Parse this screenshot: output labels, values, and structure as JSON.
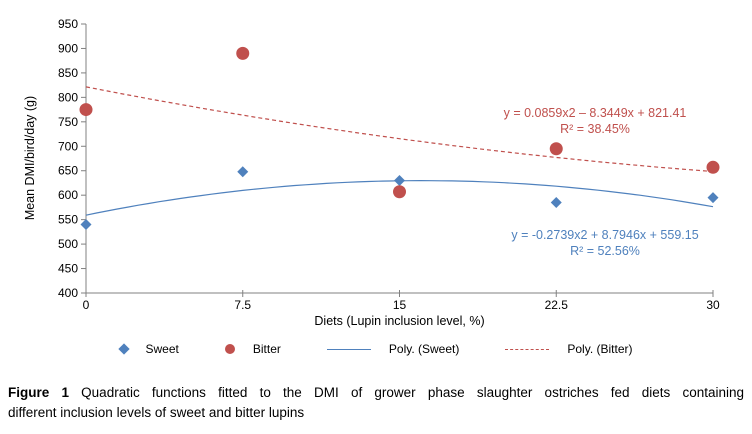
{
  "colors": {
    "sweet": "#4F81BD",
    "bitter": "#C0504D",
    "axis": "#808080"
  },
  "chart_data": {
    "type": "scatter",
    "x": [
      0,
      7.5,
      15,
      22.5,
      30
    ],
    "x_tick_labels": [
      "0",
      "7.5",
      "15",
      "22.5",
      "30"
    ],
    "y_ticks": [
      400,
      450,
      500,
      550,
      600,
      650,
      700,
      750,
      800,
      850,
      900,
      950
    ],
    "xlim": [
      0,
      30
    ],
    "ylim": [
      400,
      950
    ],
    "xlabel": "Diets (Lupin inclusion level, %)",
    "ylabel": "Mean DMI/bird/day (g)",
    "grid": false,
    "legend_position": "bottom",
    "series": [
      {
        "name": "Sweet",
        "marker": "diamond",
        "color_key": "sweet",
        "values": [
          540,
          648,
          630,
          585,
          595
        ]
      },
      {
        "name": "Bitter",
        "marker": "circle",
        "color_key": "bitter",
        "values": [
          775,
          890,
          607,
          695,
          657
        ]
      }
    ],
    "trendlines": [
      {
        "name": "Poly. (Sweet)",
        "style": "solid",
        "color_key": "sweet",
        "coefficients": {
          "a": -0.2739,
          "b": 8.7946,
          "c": 559.15
        },
        "equation": "y = -0.2739x2 + 8.7946x + 559.15",
        "r2": "R² = 52.56%"
      },
      {
        "name": "Poly. (Bitter)",
        "style": "dashed",
        "color_key": "bitter",
        "coefficients": {
          "a": 0.0859,
          "b": -8.3449,
          "c": 821.41
        },
        "equation": "y = 0.0859x2 – 8.3449x + 821.41",
        "r2": "R² = 38.45%"
      }
    ]
  },
  "legend": {
    "items": [
      {
        "label": "Sweet",
        "marker": "diamond",
        "color_key": "sweet"
      },
      {
        "label": "Bitter",
        "marker": "circle",
        "color_key": "bitter"
      },
      {
        "label": "Poly. (Sweet)",
        "marker": "line",
        "color_key": "sweet"
      },
      {
        "label": "Poly. (Bitter)",
        "marker": "dash",
        "color_key": "bitter"
      }
    ]
  },
  "caption": {
    "label": "Figure 1",
    "line1_rest": "Quadratic functions fitted to the DMI of grower phase slaughter ostriches fed diets containing",
    "line2": "different inclusion levels of sweet and bitter lupins"
  }
}
